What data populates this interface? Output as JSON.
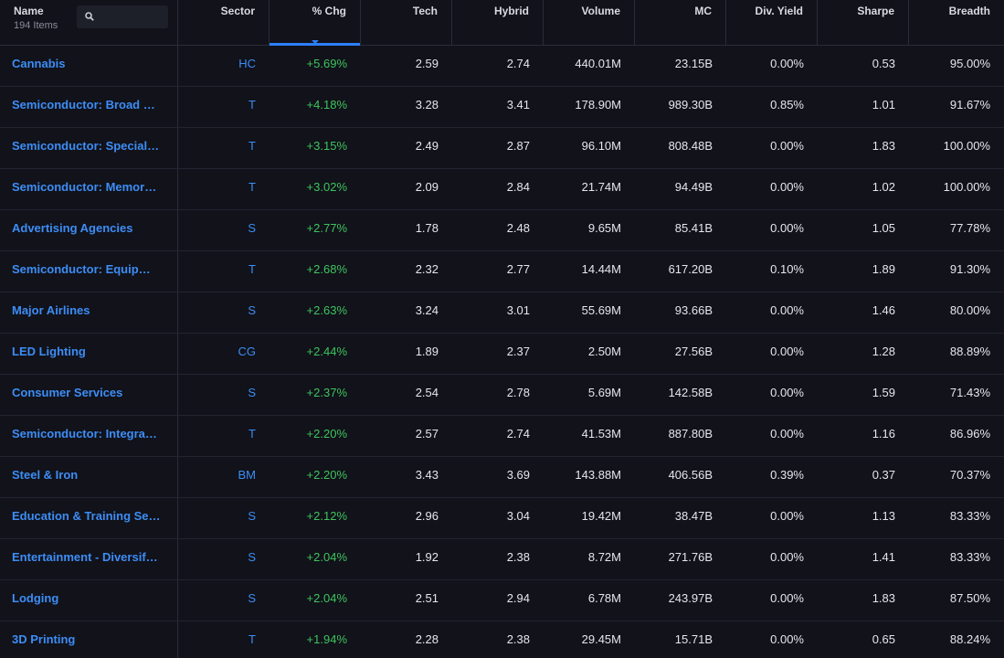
{
  "header": {
    "name_label": "Name",
    "items_count": "194 Items",
    "search": {
      "placeholder": "",
      "value": ""
    },
    "columns": [
      "Sector",
      "% Chg",
      "Tech",
      "Hybrid",
      "Volume",
      "MC",
      "Div. Yield",
      "Sharpe",
      "Breadth"
    ],
    "sorted_column": "% Chg",
    "accent_color": "#2d7ff9"
  },
  "rows": [
    {
      "name": "Cannabis",
      "sector": "HC",
      "chg": "+5.69%",
      "tech": "2.59",
      "hybrid": "2.74",
      "volume": "440.01M",
      "mc": "23.15B",
      "div": "0.00%",
      "sharpe": "0.53",
      "breadth": "95.00%"
    },
    {
      "name": "Semiconductor: Broad Line",
      "sector": "T",
      "chg": "+4.18%",
      "tech": "3.28",
      "hybrid": "3.41",
      "volume": "178.90M",
      "mc": "989.30B",
      "div": "0.85%",
      "sharpe": "1.01",
      "breadth": "91.67%"
    },
    {
      "name": "Semiconductor: Specialized",
      "sector": "T",
      "chg": "+3.15%",
      "tech": "2.49",
      "hybrid": "2.87",
      "volume": "96.10M",
      "mc": "808.48B",
      "div": "0.00%",
      "sharpe": "1.83",
      "breadth": "100.00%"
    },
    {
      "name": "Semiconductor: Memory Chips",
      "sector": "T",
      "chg": "+3.02%",
      "tech": "2.09",
      "hybrid": "2.84",
      "volume": "21.74M",
      "mc": "94.49B",
      "div": "0.00%",
      "sharpe": "1.02",
      "breadth": "100.00%"
    },
    {
      "name": "Advertising Agencies",
      "sector": "S",
      "chg": "+2.77%",
      "tech": "1.78",
      "hybrid": "2.48",
      "volume": "9.65M",
      "mc": "85.41B",
      "div": "0.00%",
      "sharpe": "1.05",
      "breadth": "77.78%"
    },
    {
      "name": "Semiconductor: Equipment & Materials",
      "sector": "T",
      "chg": "+2.68%",
      "tech": "2.32",
      "hybrid": "2.77",
      "volume": "14.44M",
      "mc": "617.20B",
      "div": "0.10%",
      "sharpe": "1.89",
      "breadth": "91.30%"
    },
    {
      "name": "Major Airlines",
      "sector": "S",
      "chg": "+2.63%",
      "tech": "3.24",
      "hybrid": "3.01",
      "volume": "55.69M",
      "mc": "93.66B",
      "div": "0.00%",
      "sharpe": "1.46",
      "breadth": "80.00%"
    },
    {
      "name": "LED Lighting",
      "sector": "CG",
      "chg": "+2.44%",
      "tech": "1.89",
      "hybrid": "2.37",
      "volume": "2.50M",
      "mc": "27.56B",
      "div": "0.00%",
      "sharpe": "1.28",
      "breadth": "88.89%"
    },
    {
      "name": "Consumer Services",
      "sector": "S",
      "chg": "+2.37%",
      "tech": "2.54",
      "hybrid": "2.78",
      "volume": "5.69M",
      "mc": "142.58B",
      "div": "0.00%",
      "sharpe": "1.59",
      "breadth": "71.43%"
    },
    {
      "name": "Semiconductor: Integrated Circuits",
      "sector": "T",
      "chg": "+2.20%",
      "tech": "2.57",
      "hybrid": "2.74",
      "volume": "41.53M",
      "mc": "887.80B",
      "div": "0.00%",
      "sharpe": "1.16",
      "breadth": "86.96%"
    },
    {
      "name": "Steel & Iron",
      "sector": "BM",
      "chg": "+2.20%",
      "tech": "3.43",
      "hybrid": "3.69",
      "volume": "143.88M",
      "mc": "406.56B",
      "div": "0.39%",
      "sharpe": "0.37",
      "breadth": "70.37%"
    },
    {
      "name": "Education & Training Services",
      "sector": "S",
      "chg": "+2.12%",
      "tech": "2.96",
      "hybrid": "3.04",
      "volume": "19.42M",
      "mc": "38.47B",
      "div": "0.00%",
      "sharpe": "1.13",
      "breadth": "83.33%"
    },
    {
      "name": "Entertainment - Diversified",
      "sector": "S",
      "chg": "+2.04%",
      "tech": "1.92",
      "hybrid": "2.38",
      "volume": "8.72M",
      "mc": "271.76B",
      "div": "0.00%",
      "sharpe": "1.41",
      "breadth": "83.33%"
    },
    {
      "name": "Lodging",
      "sector": "S",
      "chg": "+2.04%",
      "tech": "2.51",
      "hybrid": "2.94",
      "volume": "6.78M",
      "mc": "243.97B",
      "div": "0.00%",
      "sharpe": "1.83",
      "breadth": "87.50%"
    },
    {
      "name": "3D Printing",
      "sector": "T",
      "chg": "+1.94%",
      "tech": "2.28",
      "hybrid": "2.38",
      "volume": "29.45M",
      "mc": "15.71B",
      "div": "0.00%",
      "sharpe": "0.65",
      "breadth": "88.24%"
    }
  ]
}
